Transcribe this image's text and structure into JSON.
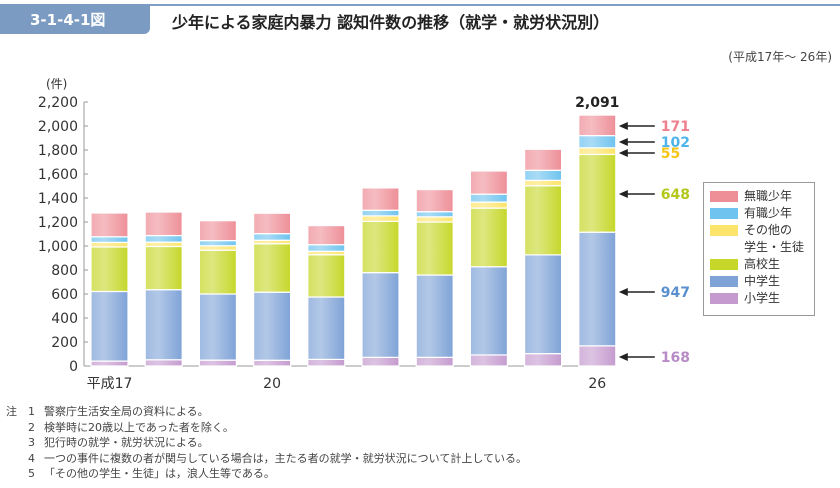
{
  "figure": {
    "number": "3-1-4-1図",
    "title": "少年による家庭内暴力 認知件数の推移（就学・就労状況別）",
    "period": "(平成17年～ 26年)"
  },
  "colors": {
    "header_tab": "#7b9bc2",
    "無職少年": "#ee8f98",
    "有職少年": "#6fc3ef",
    "その他の学生・生徒": "#fde46a",
    "高校生": "#c6d72a",
    "中学生": "#7fa3d7",
    "小学生": "#c59bcf"
  },
  "chart_data": {
    "type": "bar",
    "stacked": true,
    "title": "少年による家庭内暴力 認知件数の推移（就学・就労状況別）",
    "ylabel": "(件)",
    "xlabel": "",
    "ylim": [
      0,
      2200
    ],
    "yticks": [
      "0",
      "200",
      "400",
      "600",
      "800",
      "1,000",
      "1,200",
      "1,400",
      "1,600",
      "1,800",
      "2,000",
      "2,200"
    ],
    "ytick_values": [
      0,
      200,
      400,
      600,
      800,
      1000,
      1200,
      1400,
      1600,
      1800,
      2000,
      2200
    ],
    "categories": [
      "平成17",
      "18",
      "19",
      "20",
      "21",
      "22",
      "23",
      "24",
      "25",
      "26"
    ],
    "xtick_labels": [
      "平成17",
      "",
      "",
      "20",
      "",
      "",
      "",
      "",
      "",
      "26"
    ],
    "series": [
      {
        "name": "小学生",
        "values": [
          41,
          52,
          49,
          48,
          55,
          72,
          72,
          92,
          103,
          168
        ]
      },
      {
        "name": "中学生",
        "values": [
          580,
          584,
          551,
          567,
          520,
          706,
          686,
          735,
          823,
          947
        ]
      },
      {
        "name": "高校生",
        "values": [
          371,
          360,
          365,
          404,
          352,
          427,
          442,
          489,
          576,
          648
        ]
      },
      {
        "name": "その他の学生・生徒",
        "values": [
          38,
          36,
          37,
          29,
          29,
          46,
          43,
          50,
          45,
          55
        ]
      },
      {
        "name": "有職少年",
        "values": [
          47,
          55,
          43,
          55,
          55,
          47,
          43,
          66,
          84,
          102
        ]
      },
      {
        "name": "無職少年",
        "values": [
          198,
          196,
          166,
          170,
          159,
          186,
          184,
          193,
          175,
          171
        ]
      }
    ],
    "annotations": {
      "total_label": "2,091",
      "last_bar_labels": [
        {
          "series": "無職少年",
          "text": "171"
        },
        {
          "series": "有職少年",
          "text": "102"
        },
        {
          "series": "その他の学生・生徒",
          "text": "55"
        },
        {
          "series": "高校生",
          "text": "648"
        },
        {
          "series": "中学生",
          "text": "947"
        },
        {
          "series": "小学生",
          "text": "168"
        }
      ]
    },
    "legend": {
      "position": "right",
      "entries": [
        "無職少年",
        "有職少年",
        "その他の学生・生徒",
        "高校生",
        "中学生",
        "小学生"
      ],
      "entry_lines": [
        [
          "無職少年"
        ],
        [
          "有職少年"
        ],
        [
          "その他の",
          "学生・生徒"
        ],
        [
          "高校生"
        ],
        [
          "中学生"
        ],
        [
          "小学生"
        ]
      ]
    }
  },
  "notes": {
    "prefix": "注",
    "items": [
      {
        "num": "1",
        "text": "警察庁生活安全局の資料による。"
      },
      {
        "num": "2",
        "text": "検挙時に20歳以上であった者を除く。"
      },
      {
        "num": "3",
        "text": "犯行時の就学・就労状況による。"
      },
      {
        "num": "4",
        "text": "一つの事件に複数の者が関与している場合は，主たる者の就学・就労状況について計上している。"
      },
      {
        "num": "5",
        "text": "「その他の学生・生徒」は，浪人生等である。"
      }
    ]
  }
}
